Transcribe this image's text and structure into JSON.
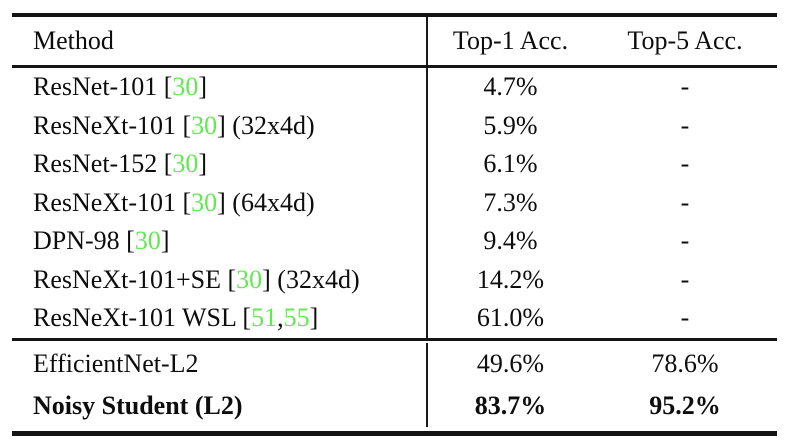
{
  "table": {
    "header": {
      "method": "Method",
      "top1": "Top-1 Acc.",
      "top5": "Top-5 Acc."
    },
    "colors": {
      "citation_green": "#62e851",
      "text": "#0d0d0d",
      "rule": "#141414",
      "background": "#ffffff"
    },
    "sections": [
      {
        "rows": [
          {
            "method_segments": [
              {
                "text": "ResNet-101 [",
                "type": "text"
              },
              {
                "text": "30",
                "type": "cite"
              },
              {
                "text": "]",
                "type": "text"
              }
            ],
            "top1": "4.7%",
            "top5": "-",
            "bold": false
          },
          {
            "method_segments": [
              {
                "text": "ResNeXt-101 [",
                "type": "text"
              },
              {
                "text": "30",
                "type": "cite"
              },
              {
                "text": "] (32x4d)",
                "type": "text"
              }
            ],
            "top1": "5.9%",
            "top5": "-",
            "bold": false
          },
          {
            "method_segments": [
              {
                "text": "ResNet-152 [",
                "type": "text"
              },
              {
                "text": "30",
                "type": "cite"
              },
              {
                "text": "]",
                "type": "text"
              }
            ],
            "top1": "6.1%",
            "top5": "-",
            "bold": false
          },
          {
            "method_segments": [
              {
                "text": "ResNeXt-101 [",
                "type": "text"
              },
              {
                "text": "30",
                "type": "cite"
              },
              {
                "text": "] (64x4d)",
                "type": "text"
              }
            ],
            "top1": "7.3%",
            "top5": "-",
            "bold": false
          },
          {
            "method_segments": [
              {
                "text": "DPN-98 [",
                "type": "text"
              },
              {
                "text": "30",
                "type": "cite"
              },
              {
                "text": "]",
                "type": "text"
              }
            ],
            "top1": "9.4%",
            "top5": "-",
            "bold": false
          },
          {
            "method_segments": [
              {
                "text": "ResNeXt-101+SE [",
                "type": "text"
              },
              {
                "text": "30",
                "type": "cite"
              },
              {
                "text": "] (32x4d)",
                "type": "text"
              }
            ],
            "top1": "14.2%",
            "top5": "-",
            "bold": false
          },
          {
            "method_segments": [
              {
                "text": "ResNeXt-101 WSL [",
                "type": "text"
              },
              {
                "text": "51",
                "type": "cite"
              },
              {
                "text": ", ",
                "type": "text"
              },
              {
                "text": "55",
                "type": "cite"
              },
              {
                "text": "]",
                "type": "text"
              }
            ],
            "top1": "61.0%",
            "top5": "-",
            "bold": false
          }
        ]
      },
      {
        "rows": [
          {
            "method_segments": [
              {
                "text": "EfficientNet-L2",
                "type": "text"
              }
            ],
            "top1": "49.6%",
            "top5": "78.6%",
            "bold": false
          },
          {
            "method_segments": [
              {
                "text": "Noisy Student (L2)",
                "type": "text"
              }
            ],
            "top1": "83.7%",
            "top5": "95.2%",
            "bold": true
          }
        ]
      }
    ]
  }
}
